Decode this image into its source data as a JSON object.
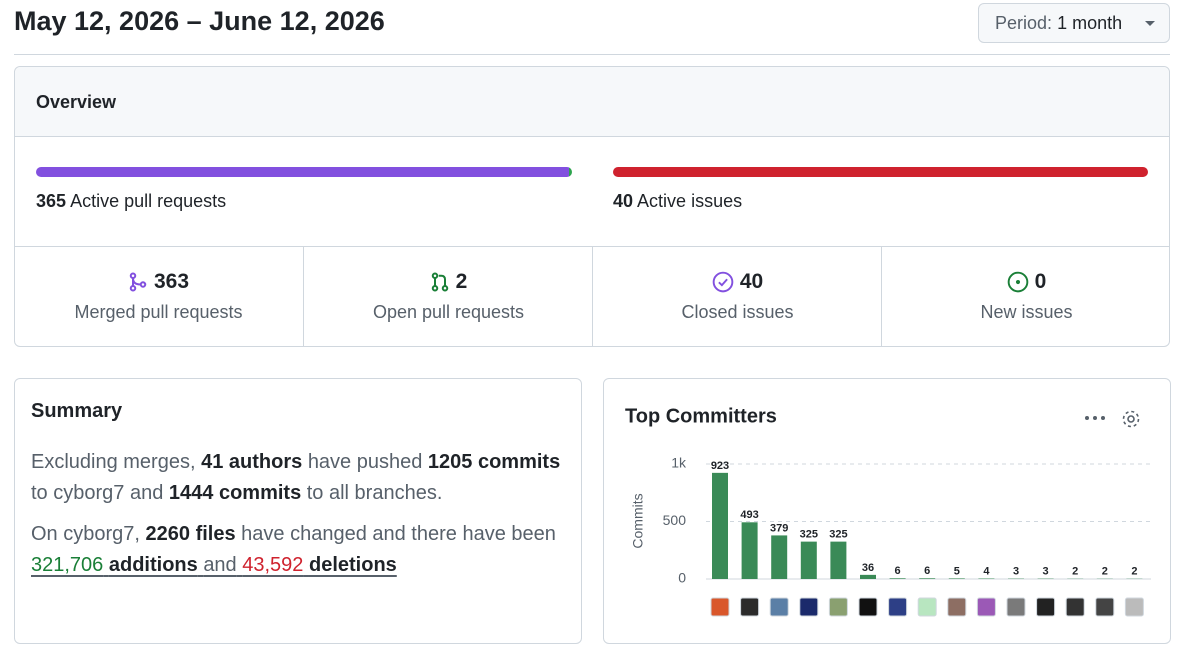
{
  "header": {
    "date_range": "May 12, 2026 – June 12, 2026",
    "period_label": "Period:",
    "period_value": "1 month"
  },
  "overview": {
    "title": "Overview",
    "active_pull_requests": {
      "count": 365,
      "label": "Active pull requests"
    },
    "active_issues": {
      "count": 40,
      "label": "Active issues"
    },
    "stats": [
      {
        "count": 363,
        "label": "Merged pull requests"
      },
      {
        "count": 2,
        "label": "Open pull requests"
      },
      {
        "count": 40,
        "label": "Closed issues"
      },
      {
        "count": 0,
        "label": "New issues"
      }
    ]
  },
  "summary": {
    "title": "Summary",
    "paragraphs": [
      [
        {
          "text": "Excluding merges,"
        },
        {
          "text": "41 authors",
          "bold": true
        },
        {
          "text": "have pushed"
        },
        {
          "text": "1205 commits",
          "bold": true
        },
        {
          "text": "to cyborg7 and"
        },
        {
          "text": "1444 commits",
          "bold": true
        },
        {
          "text": "to all branches."
        }
      ],
      [
        {
          "text": "On cyborg7,"
        },
        {
          "text": "2260 files",
          "bold": true
        },
        {
          "text": "have changed and there have been"
        },
        {
          "text": "321,706",
          "color": "#1a7f37",
          "underline": true
        },
        {
          "text": "additions",
          "bold": true,
          "underline": true
        },
        {
          "text": "and",
          "underline": true
        },
        {
          "text": "43,592",
          "color": "#cf222e",
          "underline": true
        },
        {
          "text": "deletions",
          "bold": true,
          "underline": true
        }
      ]
    ]
  },
  "chart_data": {
    "type": "bar",
    "title": "Top Committers",
    "y_label": "Commits",
    "categories": [
      null,
      null,
      null,
      null,
      null,
      null,
      null,
      null,
      null,
      null,
      null,
      null,
      null,
      null,
      null
    ],
    "values": [
      923,
      493,
      379,
      325,
      325,
      36,
      6,
      6,
      5,
      4,
      3,
      3,
      2,
      2,
      2
    ],
    "color": "#3a8a57",
    "ylim": [
      0,
      1000
    ],
    "yticks": [
      0,
      500,
      {
        "value": 1000,
        "label": "1k"
      }
    ],
    "grid": true
  }
}
